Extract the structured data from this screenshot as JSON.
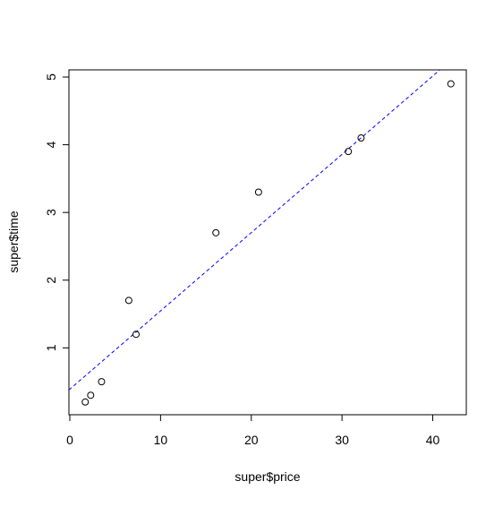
{
  "chart_data": {
    "type": "scatter",
    "x_label": "super$price",
    "y_label": "super$time",
    "x": [
      1.7,
      2.3,
      3.5,
      6.5,
      7.3,
      16.1,
      20.8,
      30.7,
      32.1,
      42.0
    ],
    "series": [
      {
        "values": [
          0.2,
          0.3,
          0.5,
          1.7,
          1.2,
          2.7,
          3.3,
          3.9,
          4.1,
          4.9
        ],
        "color": "#000000"
      }
    ],
    "abline": {
      "intercept": 0.39,
      "slope": 0.1156,
      "color": "#0000ff"
    },
    "xlim": [
      -0.1,
      43.7
    ],
    "ylim": [
      0.012,
      5.106
    ],
    "xticks": [
      0,
      10,
      20,
      30,
      40
    ],
    "yticks": [
      1,
      2,
      3,
      4,
      5
    ]
  }
}
